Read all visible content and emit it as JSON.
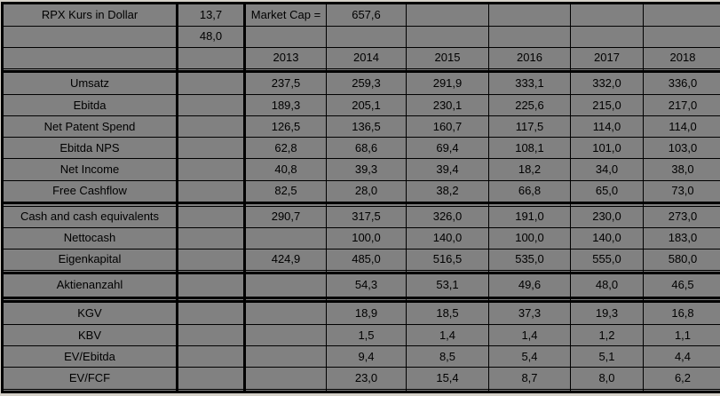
{
  "top": {
    "rpx_label": "RPX Kurs in Dollar",
    "rpx_value": "13,7",
    "rpx_value2": "48,0",
    "market_cap_label": "Market Cap =",
    "market_cap_value": "657,6"
  },
  "years": [
    "2013",
    "2014",
    "2015",
    "2016",
    "2017",
    "2018"
  ],
  "sections": [
    {
      "name": "earnings",
      "rows": [
        {
          "label": "Umsatz",
          "values": [
            "237,5",
            "259,3",
            "291,9",
            "333,1",
            "332,0",
            "336,0"
          ]
        },
        {
          "label": "Ebitda",
          "values": [
            "189,3",
            "205,1",
            "230,1",
            "225,6",
            "215,0",
            "217,0"
          ]
        },
        {
          "label": "Net Patent Spend",
          "values": [
            "126,5",
            "136,5",
            "160,7",
            "117,5",
            "114,0",
            "114,0"
          ]
        },
        {
          "label": "Ebitda NPS",
          "values": [
            "62,8",
            "68,6",
            "69,4",
            "108,1",
            "101,0",
            "103,0"
          ]
        },
        {
          "label": "Net Income",
          "values": [
            "40,8",
            "39,3",
            "39,4",
            "18,2",
            "34,0",
            "38,0"
          ]
        },
        {
          "label": "Free Cashflow",
          "values": [
            "82,5",
            "28,0",
            "38,2",
            "66,8",
            "65,0",
            "73,0"
          ]
        }
      ]
    },
    {
      "name": "balance",
      "rows": [
        {
          "label": "Cash and cash equivalents",
          "values": [
            "290,7",
            "317,5",
            "326,0",
            "191,0",
            "230,0",
            "273,0"
          ]
        },
        {
          "label": "Nettocash",
          "values": [
            "",
            "100,0",
            "140,0",
            "100,0",
            "140,0",
            "183,0"
          ]
        },
        {
          "label": "Eigenkapital",
          "values": [
            "424,9",
            "485,0",
            "516,5",
            "535,0",
            "555,0",
            "580,0"
          ]
        }
      ]
    },
    {
      "name": "shares",
      "rows": [
        {
          "label": "Aktienanzahl",
          "values": [
            "",
            "54,3",
            "53,1",
            "49,6",
            "48,0",
            "46,5"
          ]
        }
      ]
    },
    {
      "name": "multiples",
      "rows": [
        {
          "label": "KGV",
          "values": [
            "",
            "18,9",
            "18,5",
            "37,3",
            "19,3",
            "16,8"
          ]
        },
        {
          "label": "KBV",
          "values": [
            "",
            "1,5",
            "1,4",
            "1,4",
            "1,2",
            "1,1"
          ]
        },
        {
          "label": "EV/Ebitda",
          "values": [
            "",
            "9,4",
            "8,5",
            "5,4",
            "5,1",
            "4,4"
          ]
        },
        {
          "label": "EV/FCF",
          "values": [
            "",
            "23,0",
            "15,4",
            "8,7",
            "8,0",
            "6,2"
          ]
        }
      ]
    }
  ],
  "colors": {
    "cell_bg": "#818181",
    "grid_line": "#000000",
    "text": "#000000",
    "page_bg": "#d4d0c8"
  }
}
